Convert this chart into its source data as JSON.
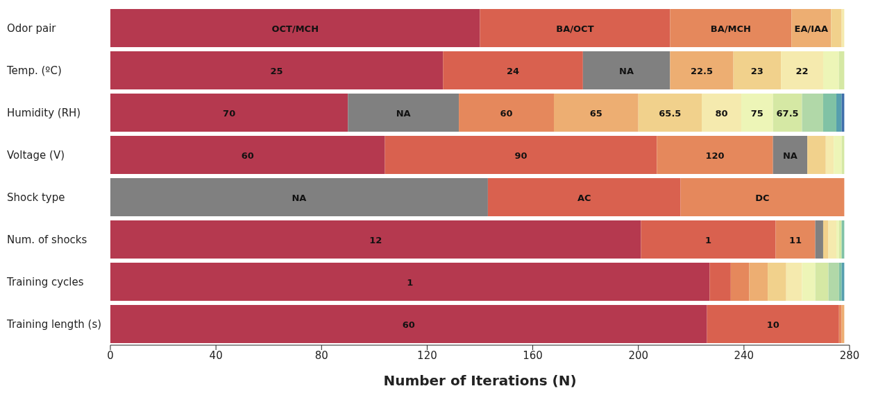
{
  "chart_data": {
    "type": "bar",
    "orientation": "horizontal",
    "stacked": true,
    "xlabel": "Number of Iterations (N)",
    "xlim": [
      0,
      280
    ],
    "xticks": [
      0,
      40,
      80,
      120,
      160,
      200,
      240,
      280
    ],
    "grid": false,
    "legend": false,
    "categories": [
      "Odor pair",
      "Temp. (ºC)",
      "Humidity (RH)",
      "Voltage (V)",
      "Shock type",
      "Num. of shocks",
      "Training cycles",
      "Training length (s)"
    ],
    "series": [
      {
        "values": [
          140,
          126,
          90,
          104,
          143,
          201,
          227,
          226
        ],
        "colors": [
          "#b5394f",
          "#b5394f",
          "#b5394f",
          "#b5394f",
          "#808080",
          "#b5394f",
          "#b5394f",
          "#b5394f"
        ]
      },
      {
        "values": [
          72,
          53,
          42,
          103,
          73,
          51,
          8,
          50
        ],
        "colors": [
          "#d9614f",
          "#d9614f",
          "#808080",
          "#d9614f",
          "#d9614f",
          "#d9614f",
          "#d9614f",
          "#d9614f"
        ]
      },
      {
        "values": [
          46,
          33,
          36,
          44,
          62,
          15,
          7,
          1
        ],
        "colors": [
          "#e5885c",
          "#808080",
          "#e5885c",
          "#e5885c",
          "#e5885c",
          "#e5885c",
          "#e5885c",
          "#e5885c"
        ]
      },
      {
        "values": [
          15,
          24,
          32,
          13,
          null,
          3,
          7,
          1
        ],
        "colors": [
          "#edae72",
          "#edae72",
          "#edae72",
          "#808080",
          null,
          "#808080",
          "#edae72",
          "#edae72"
        ]
      },
      {
        "values": [
          4,
          18,
          24,
          7,
          null,
          2,
          7,
          null
        ],
        "colors": [
          "#f1d18c",
          "#f1d18c",
          "#f1d18c",
          "#f1d18c",
          null,
          "#f1d18c",
          "#f1d18c",
          null
        ]
      },
      {
        "values": [
          1,
          16,
          15,
          3,
          null,
          3,
          6,
          null
        ],
        "colors": [
          "#f5eaae",
          "#f5eaae",
          "#f5eaae",
          "#f5eaae",
          null,
          "#f5eaae",
          "#f5eaae",
          null
        ]
      },
      {
        "values": [
          null,
          6,
          12,
          3,
          null,
          1,
          5,
          null
        ],
        "colors": [
          null,
          "#edf5b7",
          "#edf5b7",
          "#edf5b7",
          null,
          "#edf5b7",
          "#edf5b7",
          null
        ]
      },
      {
        "values": [
          null,
          2,
          11,
          1,
          null,
          1,
          5,
          null
        ],
        "colors": [
          null,
          "#d5e8a4",
          "#d5e8a4",
          "#d5e8a4",
          null,
          "#d5e8a4",
          "#d5e8a4",
          null
        ]
      },
      {
        "values": [
          null,
          null,
          8,
          null,
          null,
          1,
          4,
          null
        ],
        "colors": [
          null,
          null,
          "#b1d8a8",
          null,
          null,
          "#80c2a5",
          "#b1d8a8",
          null
        ]
      },
      {
        "values": [
          null,
          null,
          5,
          null,
          null,
          null,
          1,
          null
        ],
        "colors": [
          null,
          null,
          "#80c2a5",
          null,
          null,
          null,
          "#80c2a5",
          null
        ]
      },
      {
        "values": [
          null,
          null,
          2,
          null,
          null,
          null,
          1,
          null
        ],
        "colors": [
          null,
          null,
          "#569fae",
          null,
          null,
          null,
          "#569fae",
          null
        ]
      },
      {
        "values": [
          null,
          null,
          1,
          null,
          null,
          null,
          null,
          null
        ],
        "colors": [
          null,
          null,
          "#3f6fab",
          null,
          null,
          null,
          null,
          null
        ]
      }
    ],
    "annotations": [
      {
        "text": "OCT/MCH",
        "x": 70,
        "y": "Odor pair"
      },
      {
        "text": "BA/OCT",
        "x": 176,
        "y": "Odor pair"
      },
      {
        "text": "BA/MCH",
        "x": 235,
        "y": "Odor pair"
      },
      {
        "text": "EA/IAA",
        "x": 265.5,
        "y": "Odor pair"
      },
      {
        "text": "25",
        "x": 63,
        "y": "Temp. (ºC)"
      },
      {
        "text": "24",
        "x": 152.5,
        "y": "Temp. (ºC)"
      },
      {
        "text": "NA",
        "x": 195.5,
        "y": "Temp. (ºC)"
      },
      {
        "text": "22.5",
        "x": 224,
        "y": "Temp. (ºC)"
      },
      {
        "text": "23",
        "x": 245,
        "y": "Temp. (ºC)"
      },
      {
        "text": "22",
        "x": 262,
        "y": "Temp. (ºC)"
      },
      {
        "text": "70",
        "x": 45,
        "y": "Humidity (RH)"
      },
      {
        "text": "NA",
        "x": 111,
        "y": "Humidity (RH)"
      },
      {
        "text": "60",
        "x": 150,
        "y": "Humidity (RH)"
      },
      {
        "text": "65",
        "x": 184,
        "y": "Humidity (RH)"
      },
      {
        "text": "65.5",
        "x": 212,
        "y": "Humidity (RH)"
      },
      {
        "text": "80",
        "x": 231.5,
        "y": "Humidity (RH)"
      },
      {
        "text": "75",
        "x": 245,
        "y": "Humidity (RH)"
      },
      {
        "text": "67.5",
        "x": 256.5,
        "y": "Humidity (RH)"
      },
      {
        "text": "60",
        "x": 52,
        "y": "Voltage (V)"
      },
      {
        "text": "90",
        "x": 155.5,
        "y": "Voltage (V)"
      },
      {
        "text": "120",
        "x": 229,
        "y": "Voltage (V)"
      },
      {
        "text": "NA",
        "x": 257.5,
        "y": "Voltage (V)"
      },
      {
        "text": "NA",
        "x": 71.5,
        "y": "Shock type"
      },
      {
        "text": "AC",
        "x": 179.5,
        "y": "Shock type"
      },
      {
        "text": "DC",
        "x": 247,
        "y": "Shock type"
      },
      {
        "text": "12",
        "x": 100.5,
        "y": "Num. of shocks"
      },
      {
        "text": "1",
        "x": 226.5,
        "y": "Num. of shocks"
      },
      {
        "text": "11",
        "x": 259.5,
        "y": "Num. of shocks"
      },
      {
        "text": "1",
        "x": 113.5,
        "y": "Training cycles"
      },
      {
        "text": "60",
        "x": 113,
        "y": "Training length (s)"
      },
      {
        "text": "10",
        "x": 251,
        "y": "Training length (s)"
      }
    ]
  }
}
